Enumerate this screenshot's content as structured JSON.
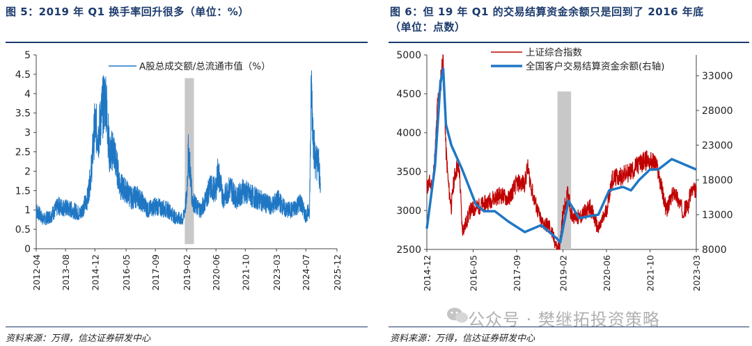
{
  "left_panel": {
    "title": "图 5：2019 年 Q1 换手率回升很多（单位：%）",
    "source": "资料来源：万得，信达证券研发中心"
  },
  "right_panel": {
    "title_line1": "图 6：但 19 年 Q1 的交易结算资金余额只是回到了 2016 年底",
    "title_line2": "（单位：点数）",
    "source": "资料来源：万得，信达证券研发中心"
  },
  "watermark": {
    "text": "公众号 · 樊继拓投资策略",
    "icon": "wechat-icon"
  },
  "chart_data": [
    {
      "type": "line",
      "title": "",
      "xlabel": "",
      "ylabel": "",
      "ylim": [
        0,
        5
      ],
      "yticks": [
        "0",
        "0.5",
        "1",
        "1.5",
        "2",
        "2.5",
        "3",
        "3.5",
        "4",
        "4.5",
        "5"
      ],
      "xlim": [
        "2012-04",
        "2025-12"
      ],
      "xticks": [
        "2012-04",
        "2013-08",
        "2014-12",
        "2016-05",
        "2017-09",
        "2019-02",
        "2020-06",
        "2021-10",
        "2023-03",
        "2024-07",
        "2025-12"
      ],
      "legend_position": "top",
      "shaded_period": [
        "2019-01",
        "2019-06"
      ],
      "color_series": "#1f77c4",
      "color_shade": "#c8c8c8",
      "series": [
        {
          "name": "A股总成交额/总流通市值（%）",
          "x": [
            "2012-04",
            "2012-08",
            "2012-12",
            "2013-04",
            "2013-08",
            "2013-12",
            "2014-04",
            "2014-08",
            "2014-10",
            "2014-12",
            "2015-02",
            "2015-04",
            "2015-06",
            "2015-08",
            "2015-10",
            "2015-12",
            "2016-02",
            "2016-05",
            "2016-08",
            "2016-11",
            "2017-02",
            "2017-05",
            "2017-09",
            "2017-12",
            "2018-04",
            "2018-08",
            "2018-12",
            "2019-02",
            "2019-03",
            "2019-04",
            "2019-05",
            "2019-07",
            "2019-10",
            "2020-01",
            "2020-03",
            "2020-06",
            "2020-07",
            "2020-10",
            "2021-02",
            "2021-05",
            "2021-09",
            "2021-12",
            "2022-04",
            "2022-08",
            "2022-12",
            "2023-04",
            "2023-08",
            "2023-12",
            "2024-04",
            "2024-07",
            "2024-09",
            "2024-10",
            "2024-11",
            "2024-12",
            "2025-02",
            "2025-03"
          ],
          "y": [
            1.0,
            0.75,
            0.85,
            1.1,
            1.05,
            1.0,
            0.9,
            1.3,
            2.0,
            3.2,
            2.9,
            3.6,
            3.9,
            2.4,
            2.6,
            2.1,
            1.6,
            1.5,
            1.3,
            1.35,
            1.2,
            1.0,
            1.1,
            1.05,
            1.0,
            0.8,
            0.75,
            1.3,
            2.5,
            2.0,
            1.3,
            1.1,
            1.0,
            1.35,
            1.6,
            1.5,
            2.0,
            1.3,
            1.6,
            1.3,
            1.5,
            1.4,
            1.3,
            1.2,
            1.1,
            1.25,
            1.0,
            1.0,
            1.2,
            0.85,
            1.0,
            4.2,
            3.0,
            2.3,
            2.2,
            1.5
          ]
        }
      ]
    },
    {
      "type": "line",
      "title": "",
      "xlabel": "",
      "ylabel": "",
      "ylim": [
        2500,
        5000
      ],
      "yticks": [
        "2500",
        "3000",
        "3500",
        "4000",
        "4500",
        "5000"
      ],
      "y2lim": [
        8000,
        36000
      ],
      "y2ticks": [
        "8000",
        "13000",
        "18000",
        "23000",
        "28000",
        "33000"
      ],
      "xlim": [
        "2014-12",
        "2023-03"
      ],
      "xticks": [
        "2014-12",
        "2016-05",
        "2017-09",
        "2019-02",
        "2020-06",
        "2021-10",
        "2023-03"
      ],
      "legend_position": "top",
      "shaded_period": [
        "2018-12",
        "2019-05"
      ],
      "color_shade": "#c8c8c8",
      "series": [
        {
          "name": "上证综合指数",
          "axis": "left",
          "color": "#c00000",
          "x": [
            "2014-12",
            "2015-01",
            "2015-02",
            "2015-03",
            "2015-04",
            "2015-05",
            "2015-06",
            "2015-07",
            "2015-08",
            "2015-09",
            "2015-10",
            "2015-11",
            "2015-12",
            "2016-01",
            "2016-02",
            "2016-04",
            "2016-07",
            "2016-10",
            "2016-12",
            "2017-03",
            "2017-06",
            "2017-09",
            "2017-12",
            "2018-01",
            "2018-03",
            "2018-06",
            "2018-09",
            "2018-12",
            "2019-01",
            "2019-02",
            "2019-04",
            "2019-05",
            "2019-08",
            "2019-12",
            "2020-03",
            "2020-06",
            "2020-08",
            "2020-12",
            "2021-03",
            "2021-06",
            "2021-09",
            "2021-12",
            "2022-01",
            "2022-04",
            "2022-07",
            "2022-10",
            "2022-12",
            "2023-01",
            "2023-03"
          ],
          "y": [
            3300,
            3350,
            3300,
            3700,
            4400,
            4600,
            5000,
            3800,
            3300,
            3050,
            3400,
            3550,
            3500,
            2750,
            2800,
            3000,
            3050,
            3100,
            3150,
            3200,
            3150,
            3350,
            3350,
            3550,
            3200,
            2850,
            2800,
            2500,
            2600,
            2950,
            3250,
            2950,
            2900,
            3050,
            2750,
            3000,
            3400,
            3450,
            3500,
            3600,
            3650,
            3600,
            3500,
            3000,
            3250,
            3000,
            3050,
            3250,
            3250
          ]
        },
        {
          "name": "全国客户交易结算资金余额(右轴)",
          "axis": "right",
          "color": "#1f77c4",
          "x": [
            "2014-12",
            "2015-03",
            "2015-05",
            "2015-06",
            "2015-07",
            "2015-09",
            "2016-01",
            "2016-06",
            "2016-09",
            "2017-01",
            "2017-06",
            "2017-12",
            "2018-06",
            "2018-12",
            "2019-01",
            "2019-03",
            "2019-04",
            "2019-08",
            "2019-12",
            "2020-03",
            "2020-07",
            "2020-12",
            "2021-03",
            "2021-06",
            "2021-10",
            "2022-01",
            "2022-06",
            "2023-03"
          ],
          "y": [
            11000,
            20000,
            32000,
            34000,
            26000,
            23000,
            19500,
            14500,
            13500,
            13500,
            12000,
            10500,
            11500,
            9500,
            9000,
            13000,
            15000,
            12500,
            12800,
            13000,
            16500,
            17000,
            16500,
            18000,
            19500,
            19500,
            21000,
            19500
          ]
        }
      ]
    }
  ]
}
